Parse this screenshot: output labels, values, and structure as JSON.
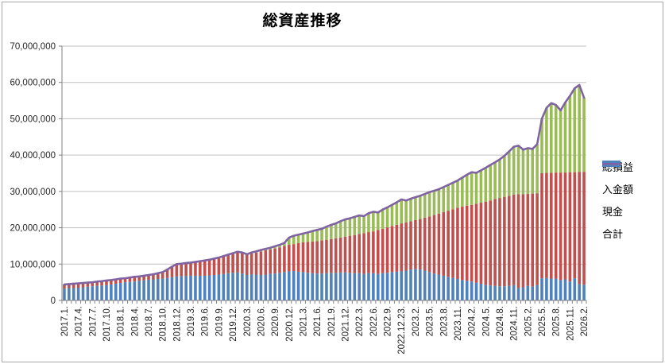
{
  "window": {
    "background": "#FFFFFF",
    "border_color": "#A6A6A6"
  },
  "chart_data": {
    "type": "bar",
    "subtype": "stacked-bars-with-total-line",
    "title": "総資産推移",
    "unit": "yen",
    "value_multiplier": 1000000,
    "n_points": 112,
    "grid": true,
    "y_axis": {
      "min": 0,
      "max": 70000000,
      "step": 10000000,
      "tick_labels": [
        "0",
        "10,000,000",
        "20,000,000",
        "30,000,000",
        "40,000,000",
        "50,000,000",
        "60,000,000",
        "70,000,000"
      ]
    },
    "x_axis": {
      "tick_every": 3,
      "tick_labels": [
        "2017.1.",
        "2017.4.",
        "2017.7.",
        "2017.10.",
        "2018.1.",
        "2018.4.",
        "2018.7.",
        "2018.10.",
        "2018.12.",
        "2019.3.",
        "2019.6.",
        "2019.9.",
        "2019.12.",
        "2020.3.",
        "2020.6.",
        "2020.9.",
        "2020.12.",
        "2021.3.",
        "2021.6.",
        "2021.9.",
        "2021.12.",
        "2022.3.",
        "2022.6.",
        "2022.9.",
        "2022.12.23.",
        "2023.2.",
        "2023.5.",
        "2023.8.",
        "2023.11.",
        "2024.2.",
        "2024.5.",
        "2024.8.",
        "2024.11.",
        "2025.2.",
        "2025.5.",
        "2025.8.",
        "2025.11.",
        "2026.2."
      ]
    },
    "series": [
      {
        "name": "現金",
        "type": "bar",
        "color": "#4F81BD",
        "values_millions": [
          3.3,
          3.4,
          3.4,
          3.5,
          3.6,
          3.8,
          3.9,
          4.0,
          4.1,
          4.2,
          4.4,
          4.6,
          4.8,
          5.0,
          5.1,
          5.2,
          5.4,
          5.5,
          5.7,
          5.8,
          5.9,
          6.0,
          6.2,
          6.4,
          6.6,
          6.7,
          6.7,
          6.8,
          6.8,
          6.8,
          6.8,
          6.9,
          7.0,
          7.1,
          7.3,
          7.5,
          7.6,
          7.7,
          7.4,
          7.0,
          7.2,
          7.1,
          7.0,
          7.1,
          7.3,
          7.4,
          7.6,
          7.8,
          8.0,
          8.1,
          7.9,
          7.8,
          7.6,
          7.5,
          7.4,
          7.4,
          7.5,
          7.6,
          7.6,
          7.7,
          7.7,
          7.6,
          7.5,
          7.5,
          7.3,
          7.5,
          7.5,
          7.3,
          7.5,
          7.6,
          7.8,
          7.9,
          8.0,
          8.2,
          8.5,
          8.7,
          8.5,
          8.2,
          7.8,
          7.4,
          7.1,
          6.8,
          6.5,
          6.2,
          5.9,
          5.6,
          5.4,
          5.2,
          4.9,
          4.6,
          4.3,
          4.1,
          4.0,
          3.9,
          3.9,
          4.0,
          4.2,
          3.4,
          3.6,
          4.0,
          3.8,
          4.2,
          6.1,
          6.2,
          6.0,
          6.0,
          5.6,
          5.8,
          5.2,
          6.1,
          4.5,
          4.3
        ]
      },
      {
        "name": "入金額",
        "type": "bar",
        "color": "#C0504D",
        "values_millions": [
          1.1,
          1.1,
          1.2,
          1.2,
          1.2,
          1.1,
          1.1,
          1.2,
          1.2,
          1.3,
          1.2,
          1.2,
          1.2,
          1.1,
          1.2,
          1.3,
          1.2,
          1.3,
          1.3,
          1.4,
          1.6,
          1.8,
          2.3,
          2.9,
          3.4,
          3.4,
          3.6,
          3.6,
          3.8,
          4.0,
          4.2,
          4.3,
          4.5,
          4.7,
          4.9,
          5.1,
          5.4,
          5.7,
          5.8,
          5.6,
          5.7,
          6.1,
          6.5,
          6.7,
          6.7,
          6.9,
          7.0,
          7.2,
          7.3,
          7.4,
          7.9,
          8.2,
          8.5,
          8.7,
          8.9,
          9.1,
          9.2,
          9.3,
          9.5,
          9.6,
          9.8,
          10.2,
          10.5,
          10.8,
          11.2,
          11.3,
          11.5,
          12.1,
          12.2,
          12.5,
          12.7,
          12.9,
          13.2,
          13.3,
          13.3,
          13.4,
          13.9,
          14.6,
          15.3,
          16.1,
          16.8,
          17.5,
          18.2,
          18.9,
          19.6,
          20.2,
          20.7,
          21.1,
          21.7,
          22.3,
          22.9,
          23.4,
          23.9,
          24.3,
          24.6,
          24.8,
          24.9,
          25.8,
          25.6,
          25.3,
          25.6,
          25.3,
          28.9,
          28.9,
          29.1,
          29.2,
          29.6,
          29.4,
          30.1,
          29.2,
          30.9,
          31.1
        ]
      },
      {
        "name": "総損益",
        "type": "bar",
        "color": "#9BBB59",
        "values_millions": [
          0,
          0,
          0,
          0,
          0,
          0,
          0,
          0,
          0,
          0,
          0,
          0,
          0,
          0,
          0,
          0,
          0,
          0,
          0,
          0,
          0,
          0,
          0,
          0,
          0,
          0,
          0,
          0,
          0,
          0,
          0,
          0,
          0,
          0,
          0,
          0,
          0,
          0,
          0,
          0.1,
          0.3,
          0.3,
          0.4,
          0.4,
          0.5,
          0.6,
          0.7,
          0.8,
          2.0,
          2.3,
          2.3,
          2.4,
          2.6,
          2.9,
          3.1,
          3.2,
          3.6,
          3.9,
          4.1,
          4.5,
          4.8,
          4.8,
          5.0,
          5.1,
          4.7,
          5.2,
          5.4,
          4.8,
          5.3,
          5.5,
          5.8,
          6.2,
          6.6,
          6.0,
          6.2,
          6.3,
          6.4,
          6.5,
          6.7,
          6.7,
          6.7,
          6.9,
          7.1,
          7.3,
          7.5,
          8.0,
          8.5,
          9.0,
          8.5,
          8.9,
          9.3,
          9.8,
          10.1,
          10.6,
          11.3,
          12.2,
          13.2,
          13.4,
          12.3,
          12.6,
          12.3,
          13.5,
          15.0,
          17.9,
          19.2,
          18.6,
          17.1,
          19.3,
          21.0,
          23.1,
          23.9,
          20.4
        ]
      },
      {
        "name": "合計",
        "type": "line",
        "color": "#8064A2",
        "derived": "sum_of_bar_series"
      }
    ],
    "legend": {
      "position": "right",
      "items": [
        "総損益",
        "入金額",
        "現金",
        "合計"
      ]
    },
    "colors": {
      "axis": "#808080",
      "gridline": "#C0C0C0",
      "tick_text": "#404040",
      "title_text": "#000000"
    }
  }
}
